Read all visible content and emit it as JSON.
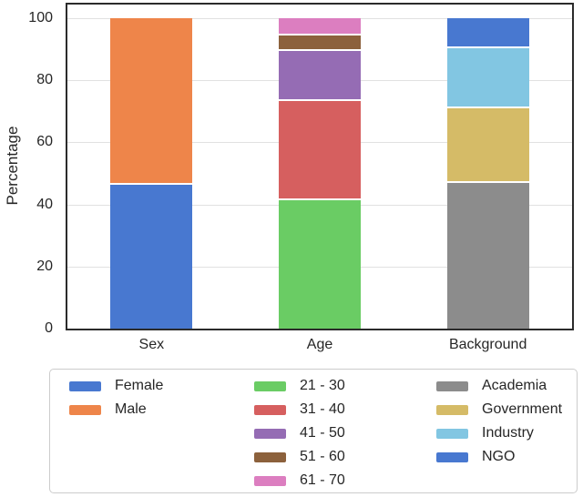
{
  "chart_data": {
    "type": "bar",
    "subtype": "stacked",
    "title": "",
    "xlabel": "",
    "ylabel": "Percentage",
    "ylim": [
      0,
      100
    ],
    "yticks": [
      0,
      20,
      40,
      60,
      80,
      100
    ],
    "grid": true,
    "categories": [
      "Sex",
      "Age",
      "Background"
    ],
    "stacks": [
      {
        "category": "Sex",
        "segments": [
          {
            "label": "Female",
            "value": 47,
            "color": "#4878d0"
          },
          {
            "label": "Male",
            "value": 53,
            "color": "#ee854a"
          }
        ]
      },
      {
        "category": "Age",
        "segments": [
          {
            "label": "21 - 30",
            "value": 42,
            "color": "#6acc64"
          },
          {
            "label": "31 - 40",
            "value": 32,
            "color": "#d65f5f"
          },
          {
            "label": "41 - 50",
            "value": 16,
            "color": "#956cb4"
          },
          {
            "label": "51 - 60",
            "value": 5,
            "color": "#8c613c"
          },
          {
            "label": "61 - 70",
            "value": 5,
            "color": "#dc7ec0"
          }
        ]
      },
      {
        "category": "Background",
        "segments": [
          {
            "label": "Academia",
            "value": 47.5,
            "color": "#8c8c8c"
          },
          {
            "label": "Government",
            "value": 24,
            "color": "#d5bb67"
          },
          {
            "label": "Industry",
            "value": 19.5,
            "color": "#82c6e2"
          },
          {
            "label": "NGO",
            "value": 9,
            "color": "#4878d0"
          }
        ]
      }
    ],
    "legend": {
      "position": "bottom",
      "columns": [
        [
          {
            "label": "Female",
            "color": "#4878d0"
          },
          {
            "label": "Male",
            "color": "#ee854a"
          }
        ],
        [
          {
            "label": "21 - 30",
            "color": "#6acc64"
          },
          {
            "label": "31 - 40",
            "color": "#d65f5f"
          },
          {
            "label": "41 - 50",
            "color": "#956cb4"
          },
          {
            "label": "51 - 60",
            "color": "#8c613c"
          },
          {
            "label": "61 - 70",
            "color": "#dc7ec0"
          }
        ],
        [
          {
            "label": "Academia",
            "color": "#8c8c8c"
          },
          {
            "label": "Government",
            "color": "#d5bb67"
          },
          {
            "label": "Industry",
            "color": "#82c6e2"
          },
          {
            "label": "NGO",
            "color": "#4878d0"
          }
        ]
      ]
    },
    "style": {
      "frame_color": "#2b2b2b",
      "grid_color": "#e1e1e1",
      "text_color": "#262626",
      "legend_border_color": "#cccccc",
      "background_color": "#ffffff"
    }
  }
}
